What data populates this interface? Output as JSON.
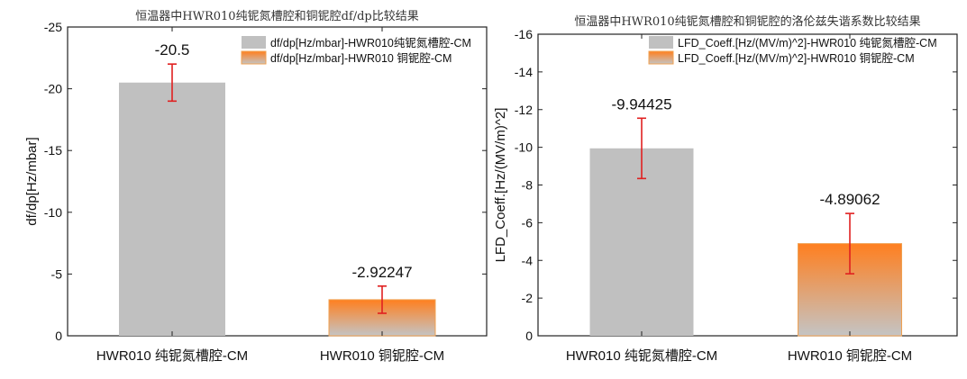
{
  "colors": {
    "cavity1": "#c0c0c0",
    "cavity2_top": "#ff7f1f",
    "cavity2_bottom": "#c4c4c4",
    "error_bar": "#e02020"
  },
  "chart_data": [
    {
      "type": "bar",
      "title": "恒温器中HWR010纯铌氮槽腔和铜铌腔df/dp比较结果",
      "ylabel": "df/dp[Hz/mbar]",
      "xlabel": "",
      "categories": [
        "HWR010 纯铌氮槽腔-CM",
        "HWR010 铜铌腔-CM"
      ],
      "values": [
        -20.5,
        -2.92247
      ],
      "errors": [
        1.5,
        1.1
      ],
      "data_labels": [
        "-20.5",
        "-2.92247"
      ],
      "ylim": [
        0,
        -25
      ],
      "y_inverted": true,
      "yticks": [
        -25,
        -20,
        -15,
        -10,
        -5,
        0
      ],
      "legend": [
        "df/dp[Hz/mbar]-HWR010纯铌氮槽腔-CM",
        "df/dp[Hz/mbar]-HWR010 铜铌腔-CM"
      ],
      "legend_position": "top-right",
      "grid": false
    },
    {
      "type": "bar",
      "title": "恒温器中HWR010纯铌氮槽腔和铜铌腔的洛伦兹失谐系数比较结果",
      "ylabel": "LFD_Coeff.[Hz/(MV/m)^2]",
      "xlabel": "",
      "categories": [
        "HWR010 纯铌氮槽腔-CM",
        "HWR010 铜铌腔-CM"
      ],
      "values": [
        -9.94425,
        -4.89062
      ],
      "errors": [
        1.6,
        1.6
      ],
      "data_labels": [
        "-9.94425",
        "-4.89062"
      ],
      "ylim": [
        0,
        -16
      ],
      "y_inverted": true,
      "yticks": [
        -16,
        -14,
        -12,
        -10,
        -8,
        -6,
        -4,
        -2,
        0
      ],
      "legend": [
        "LFD_Coeff.[Hz/(MV/m)^2]-HWR010 纯铌氮槽腔-CM",
        "LFD_Coeff.[Hz/(MV/m)^2]-HWR010 铜铌腔-CM"
      ],
      "legend_position": "top-right",
      "grid": false
    }
  ]
}
